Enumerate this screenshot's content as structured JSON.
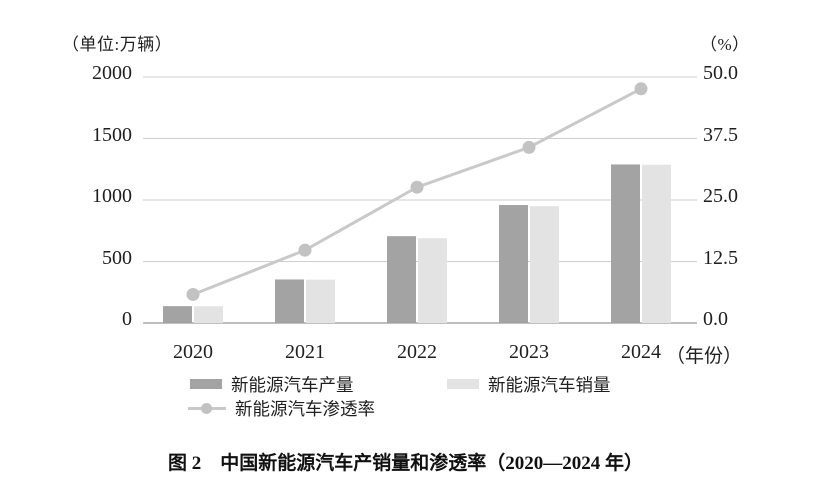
{
  "figure": {
    "caption": "图 2　中国新能源汽车产销量和渗透率（2020—2024 年）"
  },
  "chart_data": {
    "type": "bar+line combo",
    "title": "图 2　中国新能源汽车产销量和渗透率（2020—2024 年）",
    "categories": [
      "2020",
      "2021",
      "2022",
      "2023",
      "2024"
    ],
    "series": [
      {
        "name": "新能源汽车产量",
        "type": "bar",
        "axis": "left",
        "color": "#a3a3a3",
        "values": [
          137,
          354,
          706,
          959,
          1289
        ]
      },
      {
        "name": "新能源汽车销量",
        "type": "bar",
        "axis": "left",
        "color": "#e3e3e3",
        "values": [
          136,
          352,
          689,
          950,
          1287
        ]
      },
      {
        "name": "新能源汽车渗透率",
        "type": "line",
        "axis": "right",
        "color": "#c9c9c9",
        "marker_color": "#c2c2c2",
        "values": [
          5.8,
          14.8,
          27.6,
          35.7,
          47.6
        ]
      }
    ],
    "left_axis": {
      "unit": "（单位:万辆）",
      "min": 0,
      "max": 2000,
      "ticks": [
        "2000",
        "1500",
        "1000",
        "500",
        "0"
      ]
    },
    "right_axis": {
      "unit": "（%）",
      "min": 0,
      "max": 50,
      "ticks": [
        "50.0",
        "37.5",
        "25.0",
        "12.5",
        "0.0"
      ]
    },
    "x_axis_unit": "（年份）",
    "grid": true,
    "gridline_color": "#cfcfcf",
    "baseline_color": "#a8a8a8",
    "legend_position": "bottom"
  }
}
